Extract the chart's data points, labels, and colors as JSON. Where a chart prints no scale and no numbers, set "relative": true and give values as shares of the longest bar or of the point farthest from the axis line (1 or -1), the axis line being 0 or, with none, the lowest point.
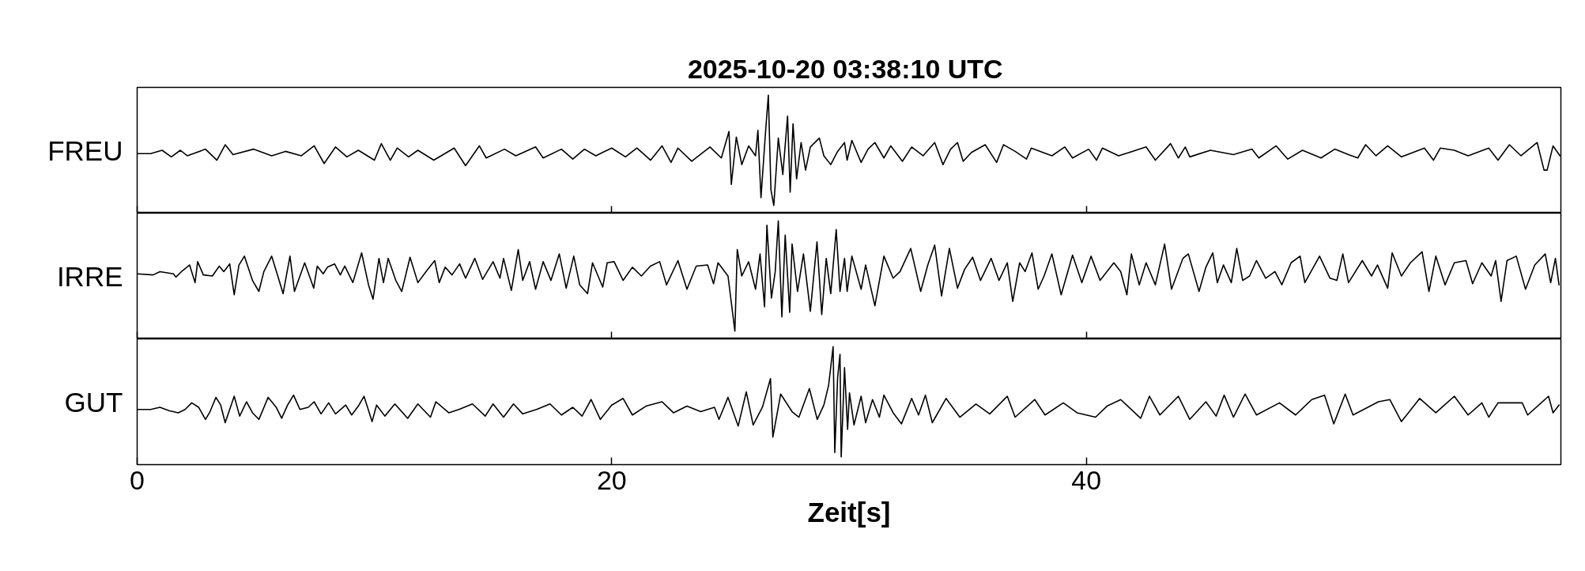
{
  "chart_data": [
    {
      "type": "line",
      "title": "2025-10-20  03:38:10 UTC",
      "ylabel": "FREU",
      "relative": true,
      "color": "#000000",
      "xlim": [
        0,
        60
      ],
      "xticks": [
        0,
        20,
        40
      ],
      "tick_labels": false,
      "x": [
        0,
        0.57,
        1.05,
        1.44,
        1.82,
        2.11,
        2.88,
        3.36,
        3.71,
        4.04,
        4.9,
        5.67,
        6.25,
        6.92,
        7.46,
        7.88,
        8.36,
        8.84,
        9.32,
        10,
        10.29,
        10.67,
        10.96,
        11.44,
        11.83,
        12.5,
        13.36,
        13.84,
        14.42,
        14.71,
        15.48,
        15.96,
        16.79,
        17.11,
        17.88,
        18.36,
        18.85,
        19.33,
        20,
        20.58,
        21.06,
        21.64,
        22.12,
        22.5,
        22.79,
        23.37,
        24.14,
        24.62,
        24.94,
        25.04,
        25.25,
        25.48,
        25.77,
        26.06,
        26.16,
        26.29,
        26.48,
        26.6,
        26.71,
        26.83,
        27.02,
        27.21,
        27.41,
        27.52,
        27.64,
        27.79,
        27.98,
        28.17,
        28.37,
        28.75,
        28.94,
        29.23,
        29.52,
        29.81,
        29.92,
        30.12,
        30.51,
        30.8,
        31.09,
        31.47,
        31.76,
        32.25,
        32.64,
        33.12,
        33.61,
        33.96,
        34.28,
        34.57,
        34.81,
        35.16,
        35.74,
        36.22,
        36.51,
        37,
        37.48,
        37.68,
        38.55,
        39.09,
        39.42,
        40.1,
        40.43,
        40.68,
        41.36,
        41.94,
        42.52,
        42.91,
        43.55,
        43.88,
        44.17,
        44.36,
        45.23,
        46.2,
        46.98,
        47.27,
        48,
        48.49,
        49.11,
        49.89,
        50.47,
        51.05,
        51.44,
        51.77,
        52.21,
        52.7,
        53.28,
        54.25,
        54.63,
        54.92,
        55.51,
        56.09,
        56.96,
        57.35,
        57.83,
        58.32,
        59,
        59.29,
        59.42,
        59.67,
        59.96
      ],
      "values": [
        0.47,
        0.47,
        0.5,
        0.44,
        0.5,
        0.45,
        0.51,
        0.41,
        0.55,
        0.46,
        0.51,
        0.45,
        0.49,
        0.45,
        0.54,
        0.38,
        0.53,
        0.44,
        0.5,
        0.41,
        0.56,
        0.41,
        0.52,
        0.44,
        0.5,
        0.41,
        0.52,
        0.36,
        0.54,
        0.43,
        0.51,
        0.45,
        0.53,
        0.43,
        0.51,
        0.42,
        0.51,
        0.45,
        0.52,
        0.44,
        0.52,
        0.41,
        0.54,
        0.39,
        0.52,
        0.4,
        0.53,
        0.43,
        0.67,
        0.19,
        0.62,
        0.37,
        0.54,
        0.45,
        0.68,
        0.07,
        0.66,
        1.0,
        0.14,
        0.0,
        0.61,
        0.28,
        0.81,
        0.12,
        0.74,
        0.24,
        0.57,
        0.32,
        0.53,
        0.61,
        0.45,
        0.37,
        0.49,
        0.57,
        0.41,
        0.59,
        0.39,
        0.51,
        0.57,
        0.43,
        0.54,
        0.4,
        0.53,
        0.45,
        0.57,
        0.37,
        0.51,
        0.57,
        0.4,
        0.48,
        0.55,
        0.39,
        0.55,
        0.49,
        0.42,
        0.52,
        0.45,
        0.53,
        0.43,
        0.51,
        0.41,
        0.52,
        0.45,
        0.49,
        0.53,
        0.41,
        0.56,
        0.43,
        0.53,
        0.44,
        0.5,
        0.46,
        0.51,
        0.43,
        0.54,
        0.42,
        0.5,
        0.43,
        0.51,
        0.46,
        0.43,
        0.55,
        0.45,
        0.54,
        0.44,
        0.52,
        0.41,
        0.52,
        0.5,
        0.45,
        0.52,
        0.41,
        0.55,
        0.45,
        0.57,
        0.32,
        0.32,
        0.54,
        0.45
      ]
    },
    {
      "type": "line",
      "ylabel": "IRRE",
      "relative": true,
      "color": "#000000",
      "xlim": [
        0,
        60
      ],
      "xticks": [
        0,
        20,
        40
      ],
      "tick_labels": false,
      "x": [
        0,
        0.67,
        0.96,
        1.53,
        1.63,
        1.92,
        2.21,
        2.44,
        2.55,
        2.79,
        3.17,
        3.46,
        3.65,
        3.9,
        4.09,
        4.29,
        4.52,
        4.86,
        5.13,
        5.34,
        5.67,
        5.9,
        6.15,
        6.44,
        6.63,
        7.06,
        7.44,
        7.59,
        7.84,
        8.02,
        8.32,
        8.56,
        8.75,
        9.09,
        9.46,
        9.75,
        9.94,
        10.19,
        10.38,
        10.58,
        10.9,
        11.15,
        11.5,
        11.83,
        12.21,
        12.54,
        12.73,
        12.98,
        13.27,
        13.59,
        13.84,
        14.23,
        14.56,
        15,
        15.29,
        15.44,
        15.77,
        16.06,
        16.25,
        16.54,
        16.79,
        17.11,
        17.44,
        17.79,
        18.08,
        18.4,
        18.65,
        18.98,
        19.19,
        19.62,
        19.81,
        20.1,
        20.48,
        20.87,
        21.25,
        21.63,
        22.02,
        22.31,
        22.79,
        23.17,
        23.56,
        24.04,
        24.29,
        24.48,
        24.9,
        25.19,
        25.29,
        25.48,
        25.77,
        26.06,
        26.25,
        26.44,
        26.54,
        26.73,
        26.89,
        27.02,
        27.17,
        27.31,
        27.5,
        27.6,
        27.83,
        28.08,
        28.37,
        28.65,
        28.85,
        29.04,
        29.23,
        29.46,
        29.62,
        29.81,
        29.92,
        30.12,
        30.51,
        30.7,
        31.09,
        31.47,
        31.86,
        32.15,
        32.6,
        33.02,
        33.32,
        33.61,
        33.9,
        34.23,
        34.57,
        34.87,
        35.21,
        35.54,
        35.99,
        36.32,
        36.67,
        36.9,
        37.19,
        37.42,
        37.71,
        37.97,
        38.22,
        38.55,
        38.94,
        39.42,
        39.81,
        40.2,
        40.58,
        41.16,
        41.45,
        41.71,
        41.9,
        42.23,
        42.52,
        42.91,
        43.3,
        43.59,
        44.07,
        44.3,
        44.75,
        45.04,
        45.33,
        45.52,
        45.78,
        46.11,
        46.34,
        46.59,
        46.88,
        47.17,
        47.56,
        47.95,
        48.24,
        48.63,
        49.01,
        49.21,
        49.83,
        50.27,
        50.56,
        50.81,
        51.05,
        51.63,
        52.02,
        52.27,
        52.7,
        52.89,
        53.28,
        53.66,
        54.15,
        54.44,
        54.73,
        55.12,
        55.51,
        56,
        56.28,
        56.67,
        57.06,
        57.25,
        57.48,
        57.73,
        58.12,
        58.51,
        58.9,
        59.34,
        59.57,
        59.77,
        59.92
      ],
      "values": [
        0.52,
        0.51,
        0.54,
        0.52,
        0.49,
        0.55,
        0.6,
        0.44,
        0.63,
        0.51,
        0.5,
        0.59,
        0.54,
        0.61,
        0.33,
        0.6,
        0.68,
        0.46,
        0.36,
        0.54,
        0.68,
        0.52,
        0.34,
        0.68,
        0.36,
        0.62,
        0.39,
        0.59,
        0.52,
        0.58,
        0.61,
        0.51,
        0.59,
        0.44,
        0.71,
        0.42,
        0.29,
        0.66,
        0.44,
        0.66,
        0.46,
        0.36,
        0.67,
        0.44,
        0.55,
        0.64,
        0.44,
        0.58,
        0.51,
        0.61,
        0.48,
        0.66,
        0.47,
        0.63,
        0.48,
        0.66,
        0.37,
        0.74,
        0.46,
        0.63,
        0.38,
        0.63,
        0.46,
        0.7,
        0.39,
        0.68,
        0.42,
        0.34,
        0.62,
        0.4,
        0.62,
        0.63,
        0.46,
        0.58,
        0.5,
        0.59,
        0.63,
        0.42,
        0.64,
        0.38,
        0.59,
        0.6,
        0.43,
        0.62,
        0.5,
        0.0,
        0.74,
        0.5,
        0.63,
        0.38,
        0.7,
        0.22,
        0.96,
        0.3,
        0.54,
        1.0,
        0.13,
        0.87,
        0.17,
        0.79,
        0.36,
        0.7,
        0.18,
        0.81,
        0.15,
        0.66,
        0.34,
        0.92,
        0.36,
        0.66,
        0.36,
        0.68,
        0.38,
        0.6,
        0.23,
        0.68,
        0.48,
        0.54,
        0.75,
        0.36,
        0.6,
        0.78,
        0.32,
        0.75,
        0.39,
        0.56,
        0.67,
        0.46,
        0.66,
        0.46,
        0.62,
        0.27,
        0.62,
        0.54,
        0.71,
        0.38,
        0.5,
        0.7,
        0.33,
        0.69,
        0.44,
        0.68,
        0.46,
        0.62,
        0.54,
        0.33,
        0.7,
        0.42,
        0.62,
        0.42,
        0.79,
        0.38,
        0.66,
        0.7,
        0.36,
        0.58,
        0.71,
        0.44,
        0.6,
        0.44,
        0.75,
        0.46,
        0.5,
        0.64,
        0.48,
        0.54,
        0.42,
        0.62,
        0.68,
        0.44,
        0.68,
        0.48,
        0.46,
        0.7,
        0.44,
        0.64,
        0.5,
        0.6,
        0.39,
        0.71,
        0.5,
        0.62,
        0.72,
        0.36,
        0.68,
        0.42,
        0.62,
        0.64,
        0.43,
        0.62,
        0.5,
        0.64,
        0.27,
        0.64,
        0.68,
        0.38,
        0.6,
        0.7,
        0.44,
        0.66,
        0.42
      ]
    },
    {
      "type": "line",
      "ylabel": "GUT",
      "xlabel": "Zeit[s]",
      "relative": true,
      "color": "#000000",
      "xlim": [
        0,
        60
      ],
      "xticks": [
        0,
        20,
        40
      ],
      "tick_labels": "x",
      "x": [
        0,
        0.57,
        0.96,
        1.34,
        1.73,
        2.02,
        2.3,
        2.59,
        2.88,
        3.07,
        3.32,
        3.52,
        3.71,
        4.09,
        4.32,
        4.61,
        4.86,
        5.13,
        5.52,
        5.86,
        6.09,
        6.34,
        6.59,
        6.86,
        7.21,
        7.46,
        7.75,
        8.07,
        8.36,
        8.79,
        9.04,
        9.32,
        9.56,
        9.9,
        10.09,
        10.44,
        10.86,
        11.4,
        11.83,
        12.36,
        12.59,
        13.13,
        13.56,
        14.13,
        14.67,
        15,
        15.44,
        15.86,
        16.25,
        16.83,
        17.4,
        17.88,
        18.36,
        18.75,
        19.13,
        19.52,
        20,
        20.48,
        20.87,
        21.44,
        22.12,
        22.6,
        23.17,
        23.75,
        24.33,
        24.52,
        24.9,
        25.33,
        25.67,
        25.96,
        26.35,
        26.69,
        26.79,
        27.12,
        27.6,
        27.89,
        28.33,
        28.66,
        28.94,
        29.14,
        29.33,
        29.4,
        29.52,
        29.62,
        29.67,
        29.81,
        29.94,
        30.02,
        30.21,
        30.51,
        30.7,
        30.99,
        31.28,
        31.47,
        31.86,
        32.21,
        32.64,
        32.93,
        33.22,
        33.51,
        34.09,
        34.67,
        35.35,
        35.93,
        36.67,
        37,
        37.83,
        38.26,
        39.03,
        39.61,
        40.39,
        40.87,
        41.45,
        42.29,
        42.66,
        43.1,
        43.88,
        44.36,
        45.04,
        45.47,
        45.81,
        46.2,
        46.69,
        47.17,
        48.14,
        48.82,
        49.5,
        50.04,
        50.43,
        50.91,
        51.24,
        52.31,
        52.79,
        53.28,
        54.05,
        54.73,
        55.51,
        56.09,
        56.67,
        56.96,
        57.35,
        58.37,
        58.6,
        59.48,
        59.67,
        59.92
      ],
      "values": [
        0.43,
        0.43,
        0.45,
        0.42,
        0.4,
        0.43,
        0.49,
        0.45,
        0.34,
        0.41,
        0.54,
        0.47,
        0.31,
        0.55,
        0.37,
        0.5,
        0.4,
        0.34,
        0.54,
        0.45,
        0.35,
        0.47,
        0.56,
        0.43,
        0.45,
        0.5,
        0.39,
        0.49,
        0.39,
        0.47,
        0.38,
        0.46,
        0.55,
        0.32,
        0.47,
        0.37,
        0.48,
        0.35,
        0.48,
        0.36,
        0.5,
        0.4,
        0.43,
        0.48,
        0.37,
        0.48,
        0.36,
        0.48,
        0.39,
        0.43,
        0.48,
        0.38,
        0.45,
        0.37,
        0.52,
        0.34,
        0.47,
        0.53,
        0.38,
        0.46,
        0.5,
        0.4,
        0.46,
        0.41,
        0.45,
        0.34,
        0.54,
        0.28,
        0.59,
        0.29,
        0.45,
        0.71,
        0.18,
        0.57,
        0.41,
        0.36,
        0.62,
        0.34,
        0.47,
        0.65,
        1.0,
        0.04,
        0.72,
        0.93,
        0.0,
        0.81,
        0.25,
        0.58,
        0.29,
        0.55,
        0.31,
        0.52,
        0.36,
        0.56,
        0.4,
        0.3,
        0.53,
        0.38,
        0.56,
        0.31,
        0.53,
        0.36,
        0.48,
        0.39,
        0.55,
        0.36,
        0.52,
        0.38,
        0.49,
        0.4,
        0.36,
        0.46,
        0.52,
        0.35,
        0.55,
        0.38,
        0.55,
        0.34,
        0.5,
        0.37,
        0.56,
        0.36,
        0.57,
        0.38,
        0.49,
        0.38,
        0.52,
        0.56,
        0.3,
        0.57,
        0.38,
        0.5,
        0.52,
        0.32,
        0.53,
        0.4,
        0.55,
        0.38,
        0.49,
        0.36,
        0.49,
        0.49,
        0.38,
        0.55,
        0.4,
        0.47
      ]
    }
  ]
}
